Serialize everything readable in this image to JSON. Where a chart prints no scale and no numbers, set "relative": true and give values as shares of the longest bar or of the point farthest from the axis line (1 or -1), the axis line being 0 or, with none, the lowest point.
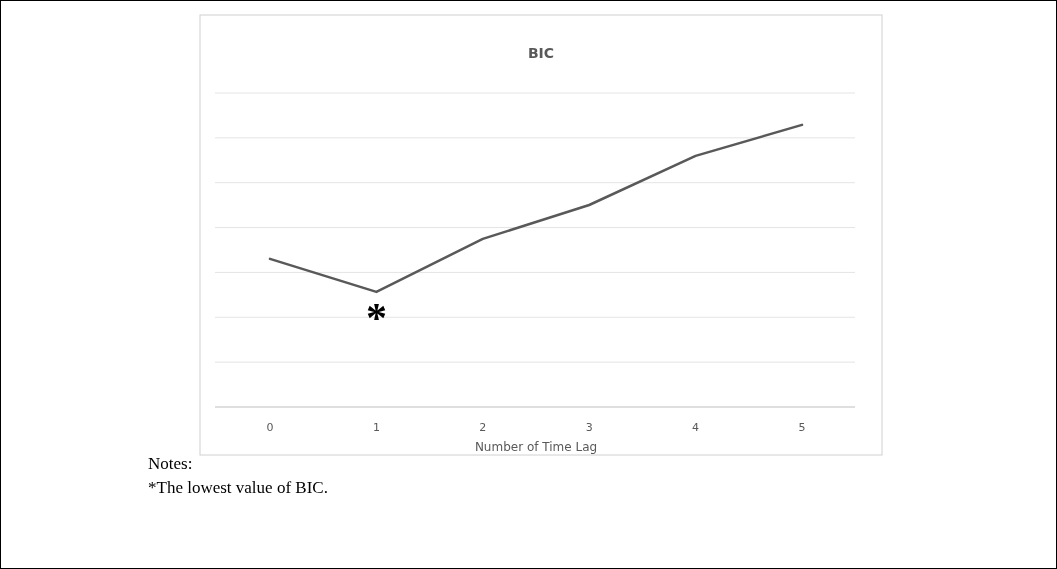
{
  "chart_data": {
    "type": "line",
    "title": "BIC",
    "xlabel": "Number of Time Lag",
    "categories": [
      "0",
      "1",
      "2",
      "3",
      "4",
      "5"
    ],
    "series": [
      {
        "color": "#595959",
        "values": [
          0.525,
          0.408,
          0.596,
          0.716,
          0.89,
          1.0
        ]
      }
    ],
    "relative": true,
    "grid": true,
    "annotations": [
      {
        "text": "*",
        "x": "1",
        "y": 0.408
      },
      "Notes:",
      "*The lowest value of BIC."
    ]
  }
}
